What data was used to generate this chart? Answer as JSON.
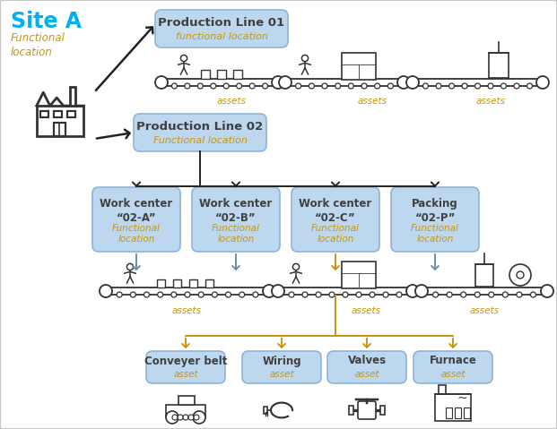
{
  "bg_color": "#ffffff",
  "border_color": "#c8c8c8",
  "box_fill": "#bdd7ee",
  "box_edge": "#8db4d8",
  "text_dark": "#404040",
  "text_orange": "#c8960a",
  "text_cyan": "#00b0f0",
  "arrow_dark": "#222222",
  "arrow_orange": "#c8960a",
  "arrow_blue_gray": "#6b8fa8",
  "site_a_label": "Site A",
  "site_a_sub": "Functional\nlocation",
  "prod01_line1": "Production Line 01",
  "prod01_line2": "functional location",
  "prod02_line1": "Production Line 02",
  "prod02_line2": "Functional location",
  "wc_labels": [
    "Work center\n“02-A”",
    "Work center\n“02-B”",
    "Work center\n“02-C”",
    "Packing\n“02-P”"
  ],
  "wc_sub": "Functional\nlocation",
  "asset_boxes": [
    "Conveyer belt",
    "Wiring",
    "Valves",
    "Furnace"
  ],
  "asset_sub": "asset",
  "assets_label": "assets",
  "fig_w": 6.21,
  "fig_h": 4.79,
  "dpi": 100
}
